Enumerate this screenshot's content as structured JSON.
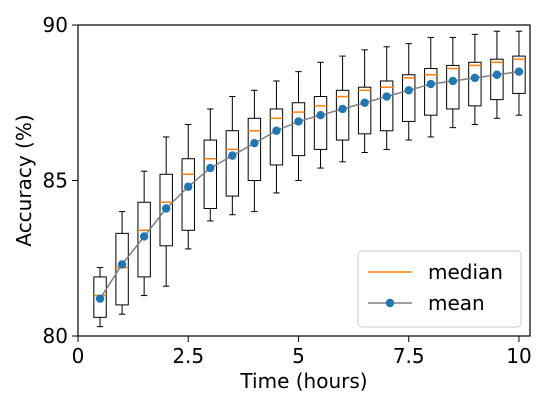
{
  "chart_data": {
    "type": "box",
    "xlabel": "Time (hours)",
    "ylabel": "Accuracy (%)",
    "xlim": [
      0,
      10.25
    ],
    "ylim": [
      80,
      90
    ],
    "xticks": [
      0,
      2.5,
      5,
      7.5,
      10
    ],
    "xtick_labels": [
      "0",
      "2.5",
      "5",
      "7.5",
      "10"
    ],
    "yticks": [
      80,
      85,
      90
    ],
    "ytick_labels": [
      "80",
      "85",
      "90"
    ],
    "legend": {
      "position": "bottom-right",
      "entries": [
        {
          "label": "median",
          "color": "#ff7f0e",
          "marker": "line"
        },
        {
          "label": "mean",
          "color": "#1f77b4",
          "marker": "line-dot",
          "line_color": "#808080"
        }
      ]
    },
    "box_color": "#000000",
    "boxes": [
      {
        "x": 0.5,
        "whislo": 80.3,
        "q1": 80.6,
        "med": 81.3,
        "q3": 81.9,
        "whishi": 82.2
      },
      {
        "x": 1.0,
        "whislo": 80.7,
        "q1": 81.0,
        "med": 82.2,
        "q3": 83.3,
        "whishi": 84.0
      },
      {
        "x": 1.5,
        "whislo": 81.3,
        "q1": 81.9,
        "med": 83.4,
        "q3": 84.3,
        "whishi": 85.3
      },
      {
        "x": 2.0,
        "whislo": 81.6,
        "q1": 82.9,
        "med": 84.3,
        "q3": 85.2,
        "whishi": 86.4
      },
      {
        "x": 2.5,
        "whislo": 82.8,
        "q1": 83.4,
        "med": 85.2,
        "q3": 85.7,
        "whishi": 86.8
      },
      {
        "x": 3.0,
        "whislo": 83.7,
        "q1": 84.1,
        "med": 85.7,
        "q3": 86.3,
        "whishi": 87.3
      },
      {
        "x": 3.5,
        "whislo": 83.9,
        "q1": 84.5,
        "med": 86.0,
        "q3": 86.6,
        "whishi": 87.7
      },
      {
        "x": 4.0,
        "whislo": 84.0,
        "q1": 85.0,
        "med": 86.6,
        "q3": 87.0,
        "whishi": 87.9
      },
      {
        "x": 4.5,
        "whislo": 84.6,
        "q1": 85.5,
        "med": 87.0,
        "q3": 87.3,
        "whishi": 88.2
      },
      {
        "x": 5.0,
        "whislo": 85.0,
        "q1": 85.8,
        "med": 87.2,
        "q3": 87.5,
        "whishi": 88.5
      },
      {
        "x": 5.5,
        "whislo": 85.4,
        "q1": 86.0,
        "med": 87.4,
        "q3": 87.7,
        "whishi": 88.8
      },
      {
        "x": 6.0,
        "whislo": 85.6,
        "q1": 86.3,
        "med": 87.7,
        "q3": 87.9,
        "whishi": 89.0
      },
      {
        "x": 6.5,
        "whislo": 85.9,
        "q1": 86.5,
        "med": 87.9,
        "q3": 88.0,
        "whishi": 89.2
      },
      {
        "x": 7.0,
        "whislo": 86.0,
        "q1": 86.6,
        "med": 88.0,
        "q3": 88.2,
        "whishi": 89.3
      },
      {
        "x": 7.5,
        "whislo": 86.3,
        "q1": 86.9,
        "med": 88.3,
        "q3": 88.4,
        "whishi": 89.4
      },
      {
        "x": 8.0,
        "whislo": 86.4,
        "q1": 87.1,
        "med": 88.4,
        "q3": 88.6,
        "whishi": 89.6
      },
      {
        "x": 8.5,
        "whislo": 86.7,
        "q1": 87.3,
        "med": 88.6,
        "q3": 88.7,
        "whishi": 89.6
      },
      {
        "x": 9.0,
        "whislo": 86.8,
        "q1": 87.4,
        "med": 88.7,
        "q3": 88.8,
        "whishi": 89.7
      },
      {
        "x": 9.5,
        "whislo": 87.0,
        "q1": 87.6,
        "med": 88.8,
        "q3": 88.9,
        "whishi": 89.8
      },
      {
        "x": 10.0,
        "whislo": 87.1,
        "q1": 87.8,
        "med": 88.9,
        "q3": 89.0,
        "whishi": 89.8
      }
    ],
    "mean_series": {
      "name": "mean",
      "x": [
        0.5,
        1.0,
        1.5,
        2.0,
        2.5,
        3.0,
        3.5,
        4.0,
        4.5,
        5.0,
        5.5,
        6.0,
        6.5,
        7.0,
        7.5,
        8.0,
        8.5,
        9.0,
        9.5,
        10.0
      ],
      "y": [
        81.2,
        82.3,
        83.2,
        84.1,
        84.8,
        85.4,
        85.8,
        86.2,
        86.6,
        86.9,
        87.1,
        87.3,
        87.5,
        87.7,
        87.9,
        88.1,
        88.2,
        88.3,
        88.4,
        88.5
      ]
    }
  }
}
